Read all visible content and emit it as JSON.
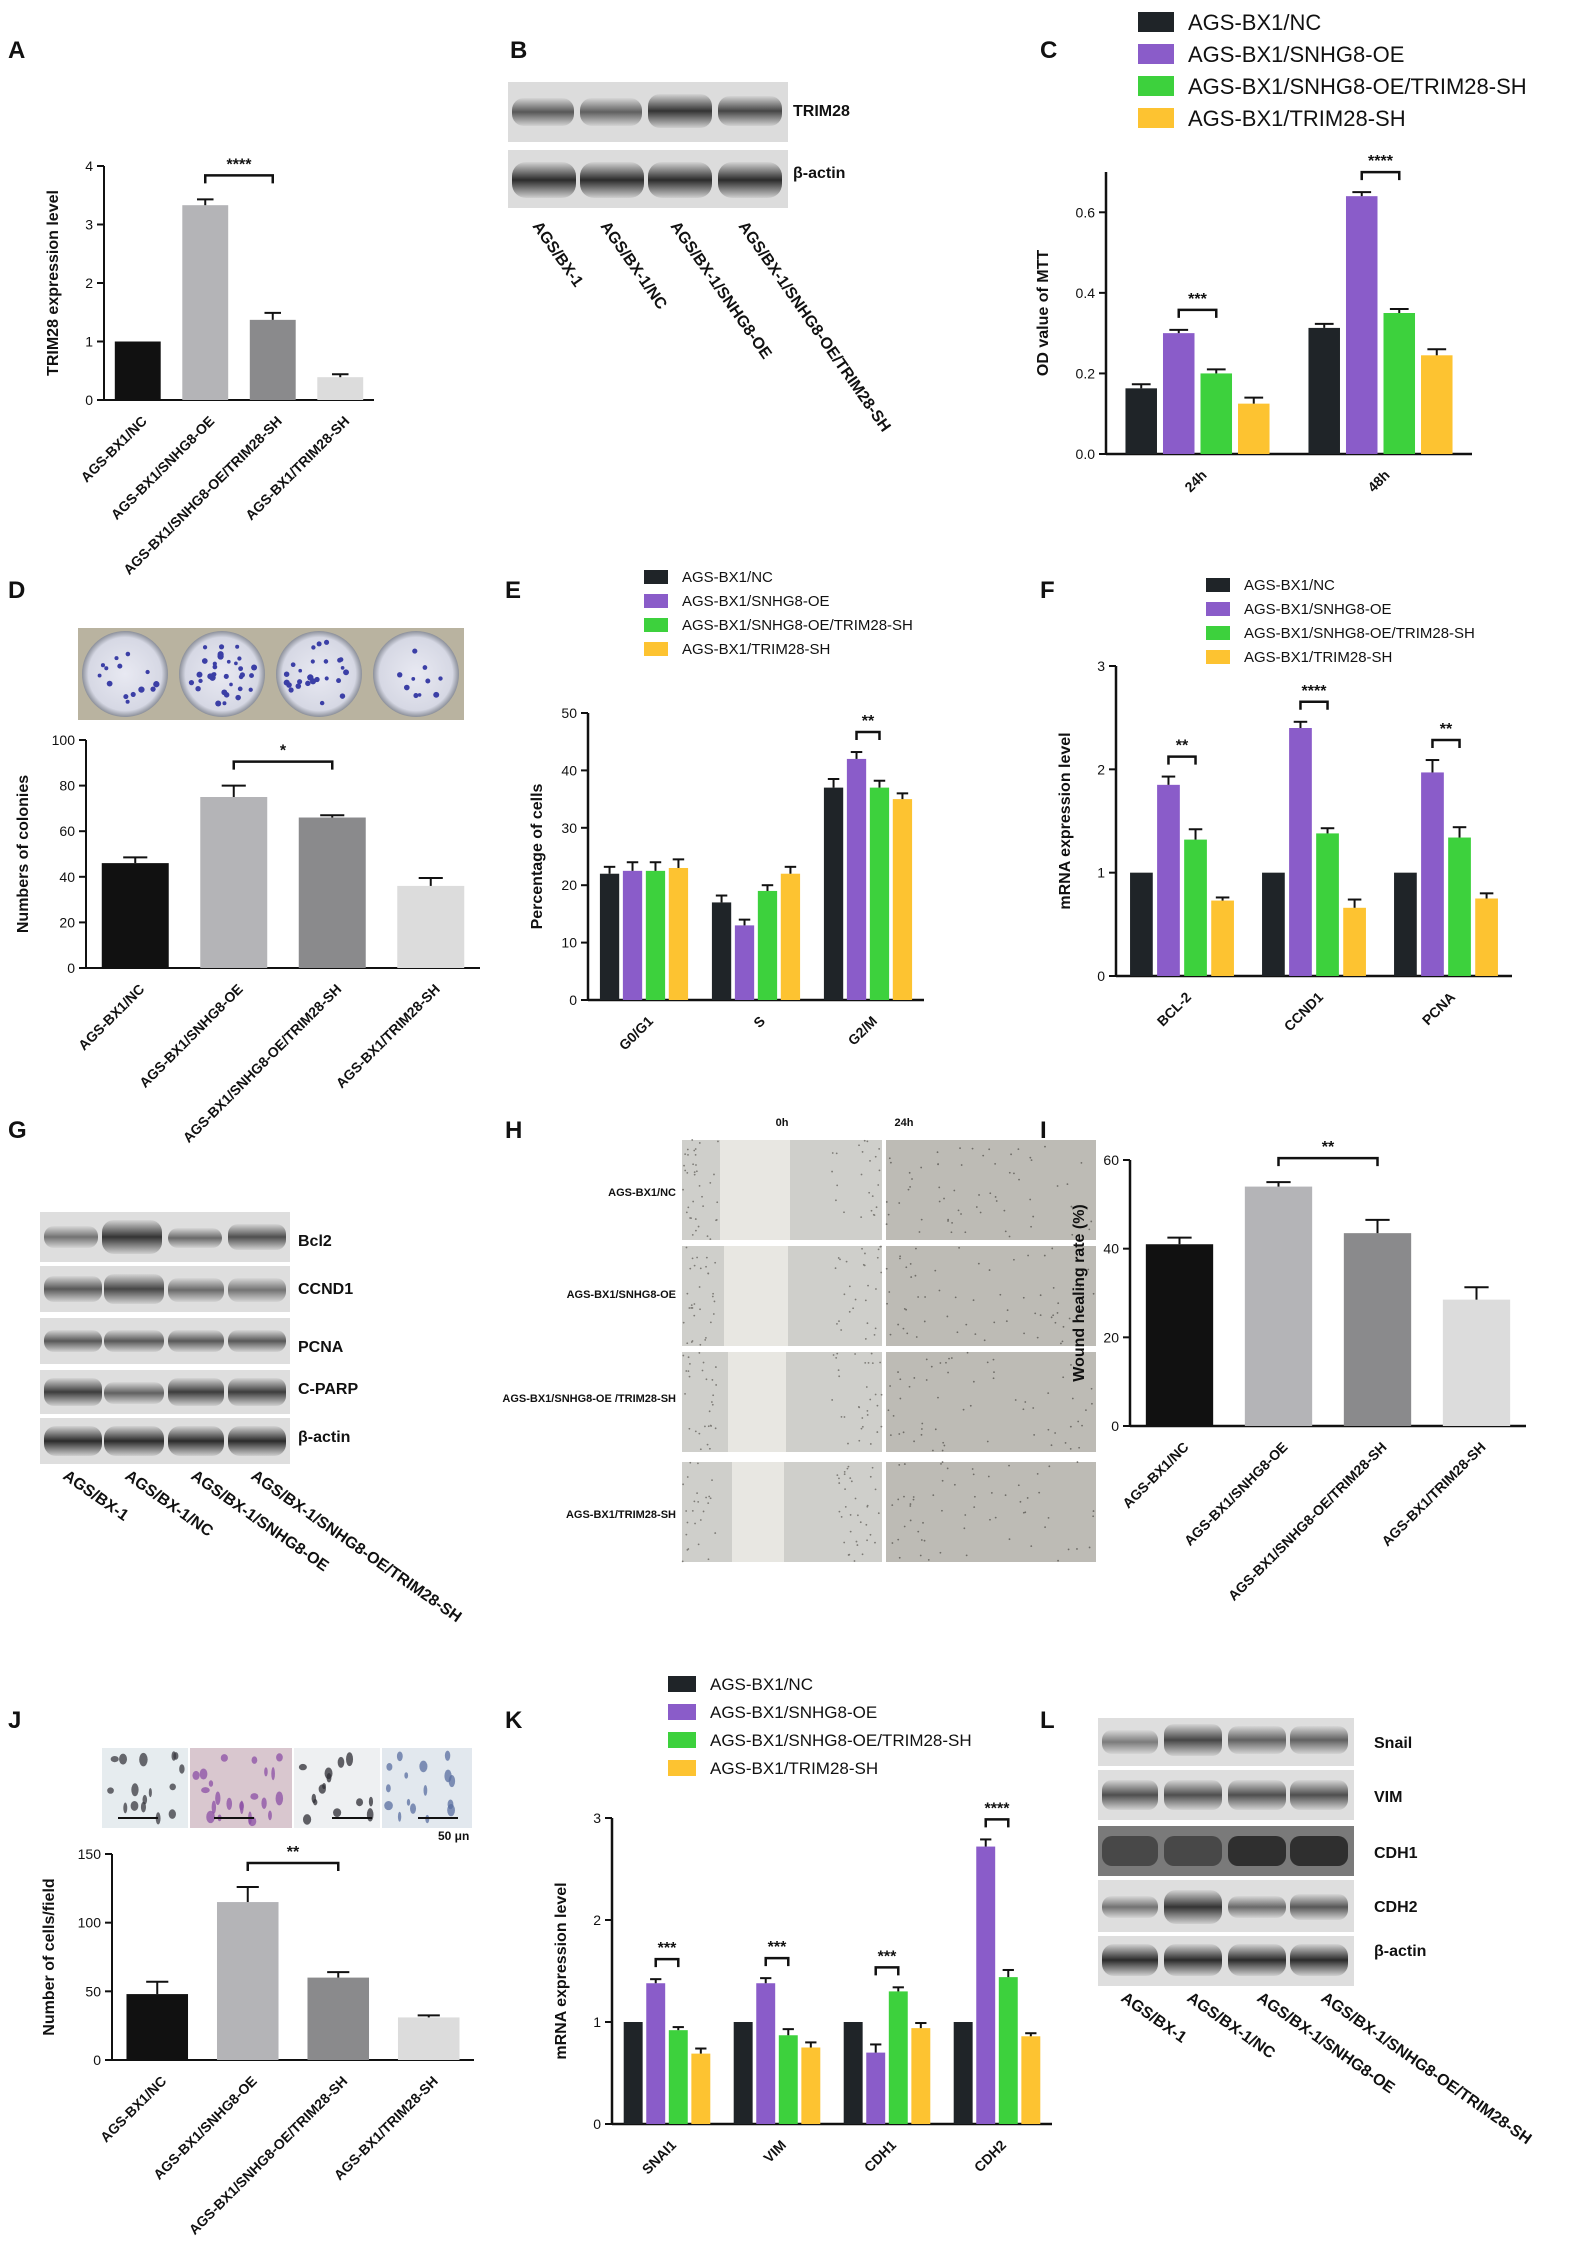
{
  "chart_data": [
    {
      "id": "A",
      "panel": "A",
      "type": "bar",
      "ylabel": "TRIM28 expression level",
      "ylim": [
        0,
        4
      ],
      "yticks": [
        0,
        1,
        2,
        3,
        4
      ],
      "categories": [
        "AGS-BX1/NC",
        "AGS-BX1/SNHG8-OE",
        "AGS-BX1/SNHG8-OE/TRIM28-SH",
        "AGS-BX1/TRIM28-SH"
      ],
      "values": [
        1.0,
        3.33,
        1.37,
        0.39
      ],
      "errors": [
        0,
        0.1,
        0.12,
        0.05
      ],
      "colors": [
        "#111111",
        "#b4b4b7",
        "#8a8a8c",
        "#dcdcdc"
      ],
      "sig": [
        {
          "from": 1,
          "to": 2,
          "label": "****"
        }
      ]
    },
    {
      "id": "C",
      "panel": "C",
      "type": "bar",
      "ylabel": "OD value of MTT",
      "ylim": [
        0,
        0.7
      ],
      "yticks": [
        0.0,
        0.2,
        0.4,
        0.6
      ],
      "categories": [
        "24h",
        "48h"
      ],
      "series": [
        {
          "name": "AGS-BX1/NC",
          "values": [
            0.163,
            0.313
          ],
          "errors": [
            0.01,
            0.01
          ],
          "color": "#1f2428"
        },
        {
          "name": "AGS-BX1/SNHG8-OE",
          "values": [
            0.3,
            0.64
          ],
          "errors": [
            0.008,
            0.01
          ],
          "color": "#8a5cc9"
        },
        {
          "name": "AGS-BX1/SNHG8-OE/TRIM28-SH",
          "values": [
            0.2,
            0.35
          ],
          "errors": [
            0.01,
            0.01
          ],
          "color": "#3dd13d"
        },
        {
          "name": "AGS-BX1/TRIM28-SH",
          "values": [
            0.125,
            0.245
          ],
          "errors": [
            0.015,
            0.015
          ],
          "color": "#fdc331"
        }
      ],
      "sig": [
        {
          "cat": 0,
          "from": 1,
          "to": 2,
          "label": "***"
        },
        {
          "cat": 1,
          "from": 1,
          "to": 2,
          "label": "****"
        }
      ]
    },
    {
      "id": "D",
      "panel": "D",
      "type": "bar",
      "ylabel": "Numbers of colonies",
      "ylim": [
        0,
        100
      ],
      "yticks": [
        0,
        20,
        40,
        60,
        80,
        100
      ],
      "categories": [
        "AGS-BX1/NC",
        "AGS-BX1/SNHG8-OE",
        "AGS-BX1/SNHG8-OE/TRIM28-SH",
        "AGS-BX1/TRIM28-SH"
      ],
      "values": [
        46,
        75,
        66,
        36
      ],
      "errors": [
        2.5,
        5,
        1,
        3.5
      ],
      "colors": [
        "#111111",
        "#b4b4b7",
        "#8a8a8c",
        "#dcdcdc"
      ],
      "sig": [
        {
          "from": 1,
          "to": 2,
          "label": "*"
        }
      ]
    },
    {
      "id": "E",
      "panel": "E",
      "type": "bar",
      "ylabel": "Percentage of cells",
      "ylim": [
        0,
        50
      ],
      "yticks": [
        0,
        10,
        20,
        30,
        40,
        50
      ],
      "categories": [
        "G0/G1",
        "S",
        "G2/M"
      ],
      "series": [
        {
          "name": "AGS-BX1/NC",
          "values": [
            22,
            17,
            37
          ],
          "errors": [
            1.2,
            1.2,
            1.5
          ],
          "color": "#1f2428"
        },
        {
          "name": "AGS-BX1/SNHG8-OE",
          "values": [
            22.5,
            13,
            42
          ],
          "errors": [
            1.5,
            1,
            1.2
          ],
          "color": "#8a5cc9"
        },
        {
          "name": "AGS-BX1/SNHG8-OE/TRIM28-SH",
          "values": [
            22.5,
            19,
            37
          ],
          "errors": [
            1.5,
            1,
            1.2
          ],
          "color": "#3dd13d"
        },
        {
          "name": "AGS-BX1/TRIM28-SH",
          "values": [
            23,
            22,
            35
          ],
          "errors": [
            1.5,
            1.2,
            1
          ],
          "color": "#fdc331"
        }
      ],
      "sig": [
        {
          "cat": 2,
          "from": 1,
          "to": 2,
          "label": "**"
        }
      ]
    },
    {
      "id": "F",
      "panel": "F",
      "type": "bar",
      "ylabel": "mRNA expression level",
      "ylim": [
        0,
        3
      ],
      "yticks": [
        0,
        1,
        2,
        3
      ],
      "categories": [
        "BCL-2",
        "CCND1",
        "PCNA"
      ],
      "series": [
        {
          "name": "AGS-BX1/NC",
          "values": [
            1.0,
            1.0,
            1.0
          ],
          "errors": [
            0,
            0,
            0
          ],
          "color": "#1f2428"
        },
        {
          "name": "AGS-BX1/SNHG8-OE",
          "values": [
            1.85,
            2.4,
            1.97
          ],
          "errors": [
            0.08,
            0.06,
            0.12
          ],
          "color": "#8a5cc9"
        },
        {
          "name": "AGS-BX1/SNHG8-OE/TRIM28-SH",
          "values": [
            1.32,
            1.38,
            1.34
          ],
          "errors": [
            0.1,
            0.05,
            0.1
          ],
          "color": "#3dd13d"
        },
        {
          "name": "AGS-BX1/TRIM28-SH",
          "values": [
            0.73,
            0.66,
            0.75
          ],
          "errors": [
            0.03,
            0.08,
            0.05
          ],
          "color": "#fdc331"
        }
      ],
      "sig": [
        {
          "cat": 0,
          "from": 1,
          "to": 2,
          "label": "**"
        },
        {
          "cat": 1,
          "from": 1,
          "to": 2,
          "label": "****"
        },
        {
          "cat": 2,
          "from": 1,
          "to": 2,
          "label": "**"
        }
      ]
    },
    {
      "id": "I",
      "panel": "I",
      "type": "bar",
      "ylabel": "Wound healing rate  (%)",
      "ylim": [
        0,
        60
      ],
      "yticks": [
        0,
        20,
        40,
        60
      ],
      "categories": [
        "AGS-BX1/NC",
        "AGS-BX1/SNHG8-OE",
        "AGS-BX1/SNHG8-OE/TRIM28-SH",
        "AGS-BX1/TRIM28-SH"
      ],
      "values": [
        41,
        54,
        43.5,
        28.5
      ],
      "errors": [
        1.5,
        1,
        3,
        2.8
      ],
      "colors": [
        "#111111",
        "#b4b4b7",
        "#8a8a8c",
        "#dcdcdc"
      ],
      "sig": [
        {
          "from": 1,
          "to": 2,
          "label": "**"
        }
      ]
    },
    {
      "id": "J",
      "panel": "J",
      "type": "bar",
      "ylabel": "Number of cells/field",
      "ylim": [
        0,
        150
      ],
      "yticks": [
        0,
        50,
        100,
        150
      ],
      "categories": [
        "AGS-BX1/NC",
        "AGS-BX1/SNHG8-OE",
        "AGS-BX1/SNHG8-OE/TRIM28-SH",
        "AGS-BX1/TRIM28-SH"
      ],
      "values": [
        48,
        115,
        60,
        31
      ],
      "errors": [
        9,
        11,
        4,
        1.5
      ],
      "colors": [
        "#111111",
        "#b4b4b7",
        "#8a8a8c",
        "#dcdcdc"
      ],
      "sig": [
        {
          "from": 1,
          "to": 2,
          "label": "**"
        }
      ]
    },
    {
      "id": "K",
      "panel": "K",
      "type": "bar",
      "ylabel": "mRNA expression level",
      "ylim": [
        0,
        3
      ],
      "yticks": [
        0,
        1,
        2,
        3
      ],
      "categories": [
        "SNAI1",
        "VIM",
        "CDH1",
        "CDH2"
      ],
      "series": [
        {
          "name": "AGS-BX1/NC",
          "values": [
            1.0,
            1.0,
            1.0,
            1.0
          ],
          "errors": [
            0,
            0,
            0,
            0
          ],
          "color": "#1f2428"
        },
        {
          "name": "AGS-BX1/SNHG8-OE",
          "values": [
            1.38,
            1.38,
            0.7,
            2.72
          ],
          "errors": [
            0.04,
            0.05,
            0.08,
            0.07
          ],
          "color": "#8a5cc9"
        },
        {
          "name": "AGS-BX1/SNHG8-OE/TRIM28-SH",
          "values": [
            0.92,
            0.87,
            1.3,
            1.44
          ],
          "errors": [
            0.03,
            0.06,
            0.04,
            0.07
          ],
          "color": "#3dd13d"
        },
        {
          "name": "AGS-BX1/TRIM28-SH",
          "values": [
            0.69,
            0.75,
            0.94,
            0.86
          ],
          "errors": [
            0.05,
            0.05,
            0.05,
            0.03
          ],
          "color": "#fdc331"
        }
      ],
      "sig": [
        {
          "cat": 0,
          "from": 1,
          "to": 2,
          "label": "***"
        },
        {
          "cat": 1,
          "from": 1,
          "to": 2,
          "label": "***"
        },
        {
          "cat": 2,
          "from": 1,
          "to": 2,
          "label": "***"
        },
        {
          "cat": 3,
          "from": 1,
          "to": 2,
          "label": "****"
        }
      ]
    }
  ],
  "panel_labels": [
    "A",
    "B",
    "C",
    "D",
    "E",
    "F",
    "G",
    "H",
    "I",
    "J",
    "K",
    "L"
  ],
  "blots": {
    "B": {
      "bands": [
        "TRIM28",
        "β-actin"
      ],
      "lanes": [
        "AGS/BX-1",
        "AGS/BX-1/NC",
        "AGS/BX-1/SNHG8-OE",
        "AGS/BX-1/SNHG8-OE/TRIM28-SH"
      ]
    },
    "G": {
      "bands": [
        "Bcl2",
        "CCND1",
        "PCNA",
        "C-PARP",
        "β-actin"
      ],
      "lanes": [
        "AGS/BX-1",
        "AGS/BX-1/NC",
        "AGS/BX-1/SNHG8-OE",
        "AGS/BX-1/SNHG8-OE/TRIM28-SH"
      ]
    },
    "L": {
      "bands": [
        "Snail",
        "VIM",
        "CDH1",
        "CDH2",
        "β-actin"
      ],
      "lanes": [
        "AGS/BX-1",
        "AGS/BX-1/NC",
        "AGS/BX-1/SNHG8-OE",
        "AGS/BX-1/SNHG8-OE/TRIM28-SH"
      ]
    }
  },
  "wound": {
    "times": [
      "0h",
      "24h"
    ],
    "rows": [
      "AGS-BX1/NC",
      "AGS-BX1/SNHG8-OE",
      "AGS-BX1/SNHG8-OE\n/TRIM28-SH",
      "AGS-BX1/TRIM28-SH"
    ]
  },
  "scale_bar": "50 μn"
}
